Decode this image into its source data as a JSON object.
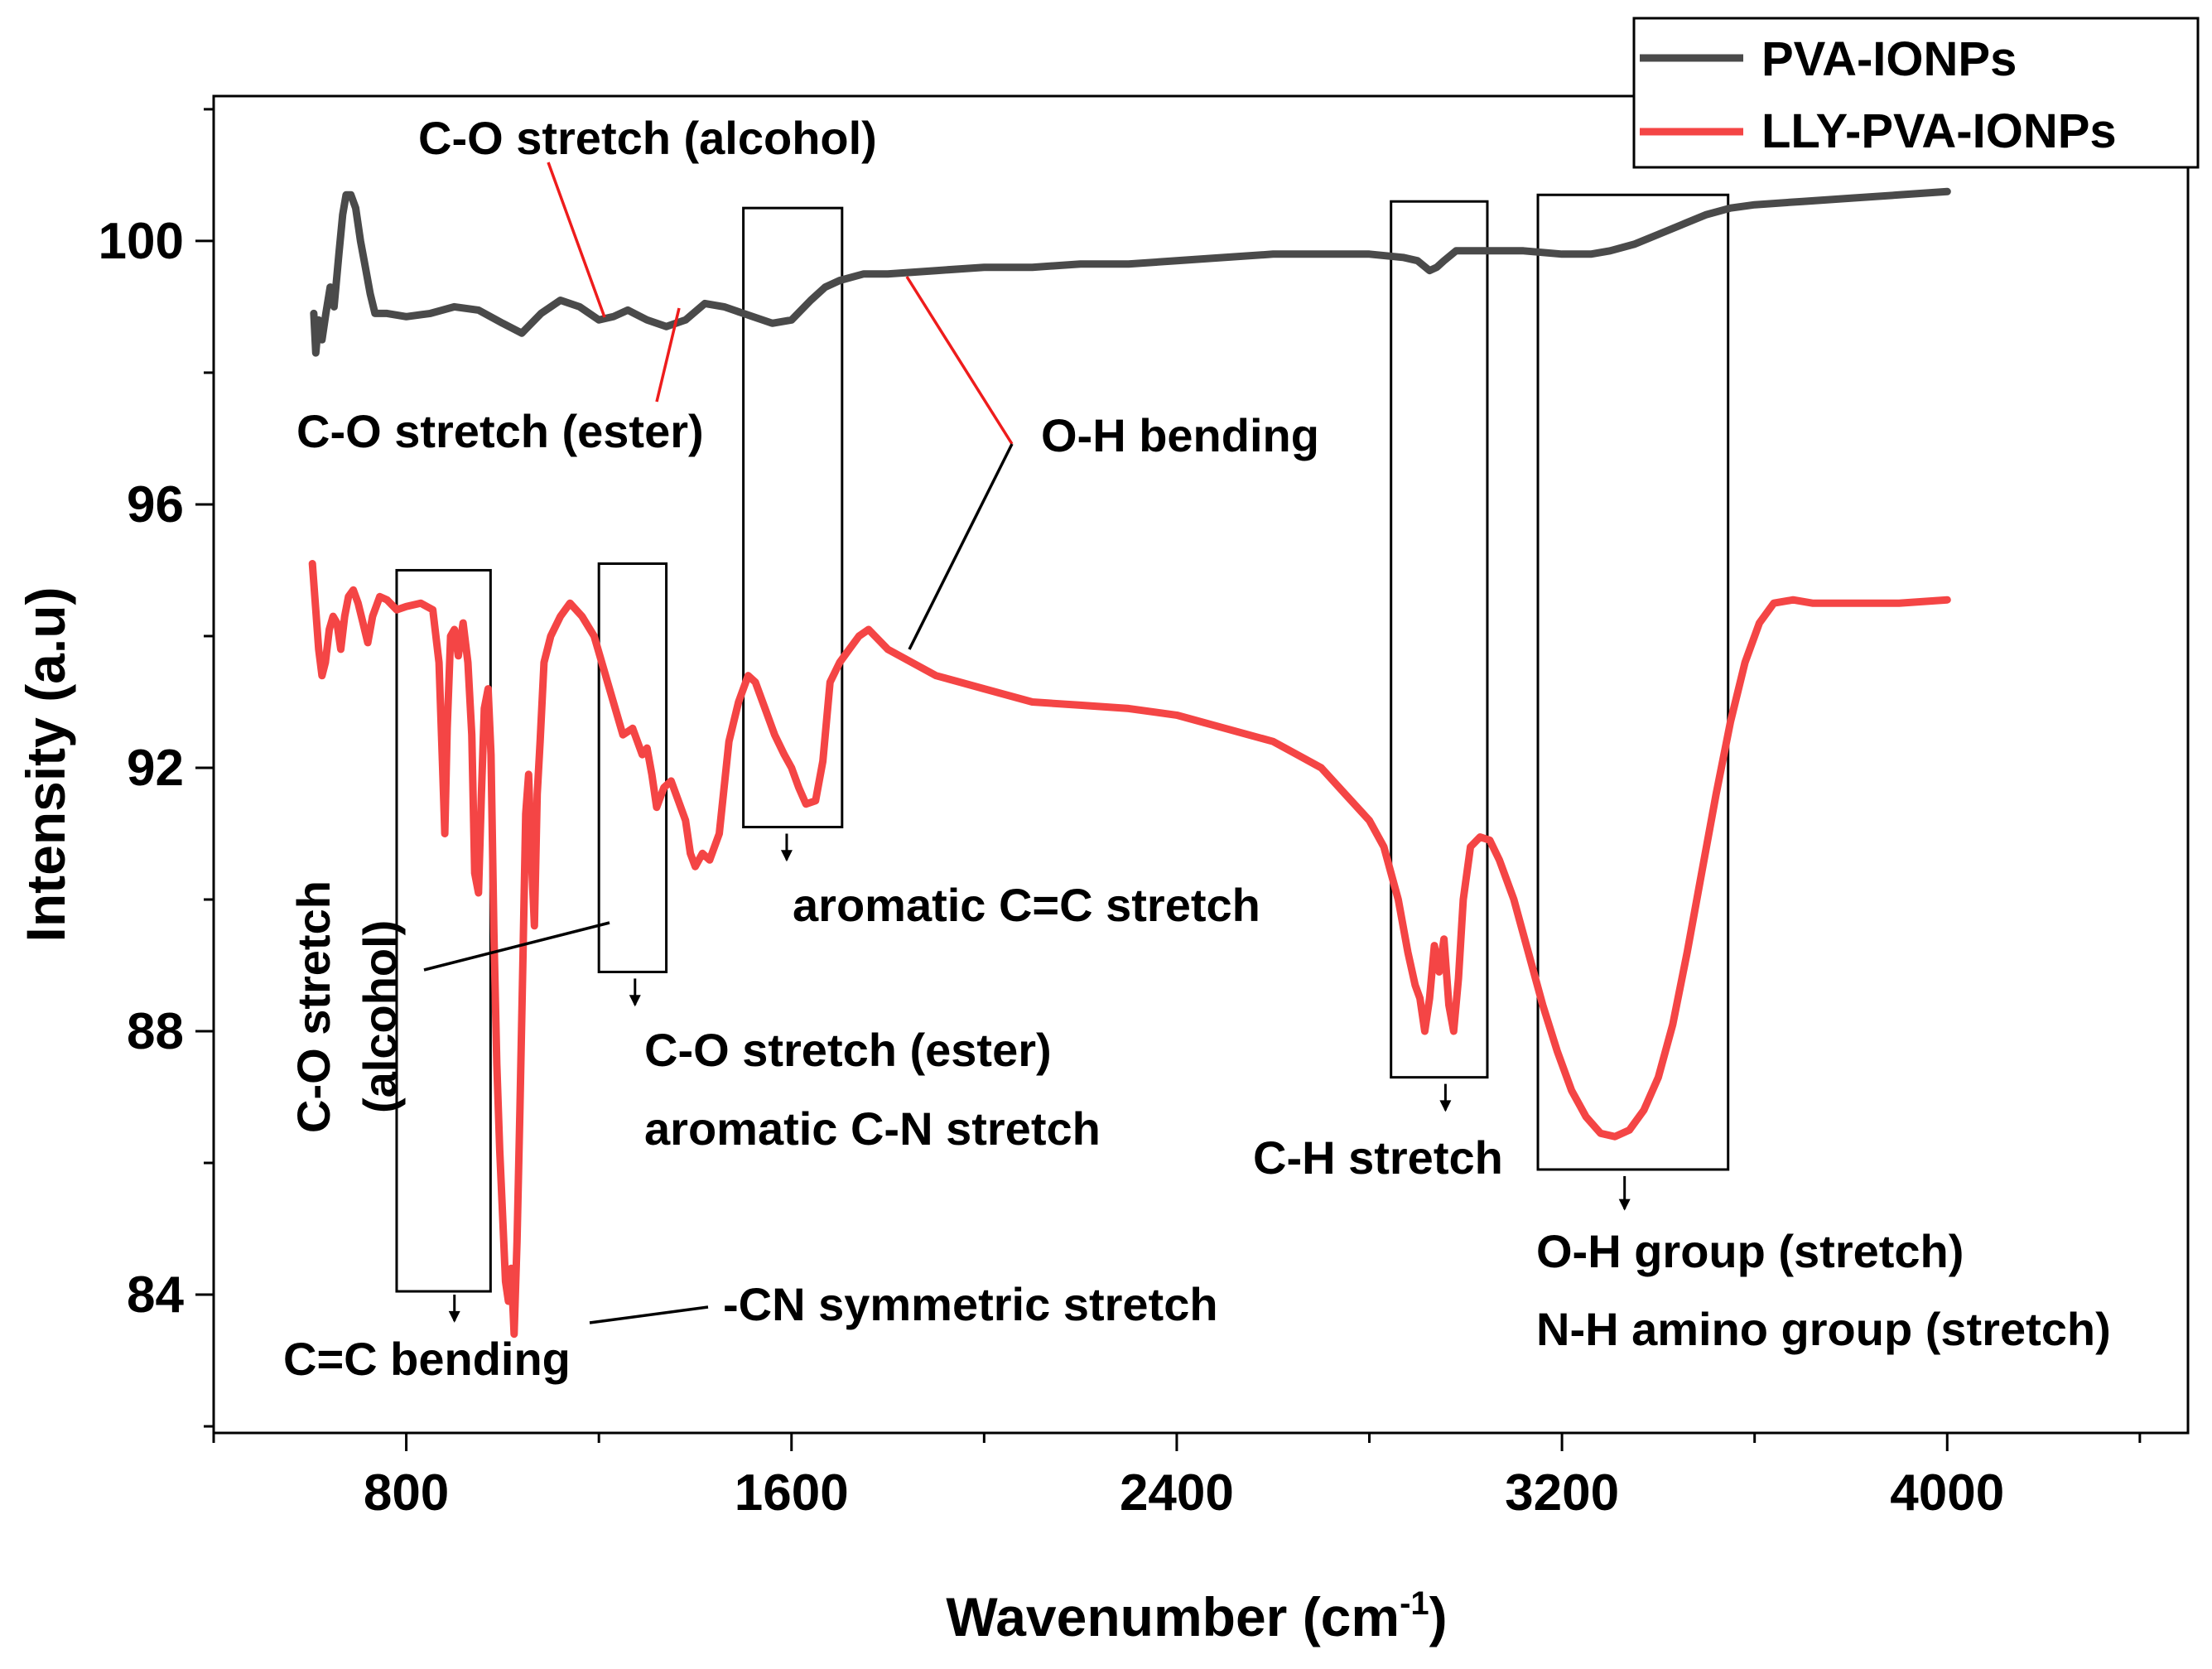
{
  "chart_data": {
    "type": "line",
    "xlabel": "Wavenumber",
    "xlabel_unit": "(cm",
    "xlabel_sup": "-1",
    "xlabel_close": ")",
    "ylabel": "Intensity (a.u)",
    "xlim": [
      400,
      4500
    ],
    "ylim": [
      81.9,
      102.2
    ],
    "xticks": [
      800,
      1600,
      2400,
      3200,
      4000
    ],
    "xtick_labels": [
      "800",
      "1600",
      "2400",
      "3200",
      "4000"
    ],
    "yticks": [
      84,
      88,
      92,
      96,
      100
    ],
    "ytick_labels": [
      "84",
      "88",
      "92",
      "96",
      "100"
    ],
    "legend": {
      "position": "top-right"
    },
    "series": [
      {
        "name": "PVA-IONPs",
        "color": "#4a4a4a",
        "points": [
          [
            608,
            98.9
          ],
          [
            612,
            98.3
          ],
          [
            618,
            98.8
          ],
          [
            625,
            98.5
          ],
          [
            633,
            98.9
          ],
          [
            642,
            99.3
          ],
          [
            650,
            99.0
          ],
          [
            660,
            99.8
          ],
          [
            668,
            100.4
          ],
          [
            675,
            100.7
          ],
          [
            685,
            100.7
          ],
          [
            695,
            100.5
          ],
          [
            705,
            100.0
          ],
          [
            715,
            99.6
          ],
          [
            725,
            99.2
          ],
          [
            735,
            98.9
          ],
          [
            760,
            98.9
          ],
          [
            800,
            98.85
          ],
          [
            850,
            98.9
          ],
          [
            900,
            99.0
          ],
          [
            950,
            98.95
          ],
          [
            1000,
            98.75
          ],
          [
            1040,
            98.6
          ],
          [
            1080,
            98.9
          ],
          [
            1120,
            99.1
          ],
          [
            1160,
            99.0
          ],
          [
            1200,
            98.8
          ],
          [
            1230,
            98.85
          ],
          [
            1260,
            98.95
          ],
          [
            1300,
            98.8
          ],
          [
            1340,
            98.7
          ],
          [
            1380,
            98.8
          ],
          [
            1420,
            99.05
          ],
          [
            1460,
            99.0
          ],
          [
            1500,
            98.9
          ],
          [
            1560,
            98.75
          ],
          [
            1600,
            98.8
          ],
          [
            1640,
            99.1
          ],
          [
            1670,
            99.3
          ],
          [
            1700,
            99.4
          ],
          [
            1750,
            99.5
          ],
          [
            1800,
            99.5
          ],
          [
            1900,
            99.55
          ],
          [
            2000,
            99.6
          ],
          [
            2100,
            99.6
          ],
          [
            2200,
            99.65
          ],
          [
            2300,
            99.65
          ],
          [
            2400,
            99.7
          ],
          [
            2500,
            99.75
          ],
          [
            2600,
            99.8
          ],
          [
            2700,
            99.8
          ],
          [
            2800,
            99.8
          ],
          [
            2870,
            99.75
          ],
          [
            2900,
            99.7
          ],
          [
            2925,
            99.55
          ],
          [
            2940,
            99.6
          ],
          [
            2955,
            99.7
          ],
          [
            2980,
            99.85
          ],
          [
            3050,
            99.85
          ],
          [
            3120,
            99.85
          ],
          [
            3200,
            99.8
          ],
          [
            3260,
            99.8
          ],
          [
            3300,
            99.85
          ],
          [
            3350,
            99.95
          ],
          [
            3400,
            100.1
          ],
          [
            3450,
            100.25
          ],
          [
            3500,
            100.4
          ],
          [
            3550,
            100.5
          ],
          [
            3600,
            100.55
          ],
          [
            3700,
            100.6
          ],
          [
            3800,
            100.65
          ],
          [
            3900,
            100.7
          ],
          [
            4000,
            100.75
          ]
        ]
      },
      {
        "name": "LLY-PVA-IONPs",
        "color": "#f44545",
        "points": [
          [
            605,
            95.1
          ],
          [
            612,
            94.4
          ],
          [
            618,
            93.8
          ],
          [
            625,
            93.4
          ],
          [
            632,
            93.6
          ],
          [
            640,
            94.1
          ],
          [
            648,
            94.3
          ],
          [
            656,
            94.2
          ],
          [
            664,
            93.8
          ],
          [
            672,
            94.3
          ],
          [
            680,
            94.6
          ],
          [
            690,
            94.7
          ],
          [
            700,
            94.5
          ],
          [
            710,
            94.2
          ],
          [
            720,
            93.9
          ],
          [
            730,
            94.3
          ],
          [
            745,
            94.6
          ],
          [
            760,
            94.55
          ],
          [
            780,
            94.4
          ],
          [
            800,
            94.45
          ],
          [
            830,
            94.5
          ],
          [
            855,
            94.4
          ],
          [
            868,
            93.6
          ],
          [
            875,
            92.1
          ],
          [
            880,
            91.0
          ],
          [
            885,
            92.6
          ],
          [
            892,
            94.0
          ],
          [
            900,
            94.1
          ],
          [
            908,
            93.7
          ],
          [
            918,
            94.2
          ],
          [
            928,
            93.6
          ],
          [
            936,
            92.5
          ],
          [
            942,
            90.4
          ],
          [
            950,
            90.1
          ],
          [
            956,
            91.6
          ],
          [
            962,
            92.9
          ],
          [
            970,
            93.2
          ],
          [
            976,
            92.2
          ],
          [
            982,
            89.5
          ],
          [
            988,
            87.5
          ],
          [
            994,
            86.2
          ],
          [
            1000,
            85.2
          ],
          [
            1006,
            84.2
          ],
          [
            1012,
            83.9
          ],
          [
            1018,
            84.4
          ],
          [
            1024,
            83.4
          ],
          [
            1030,
            84.8
          ],
          [
            1036,
            86.8
          ],
          [
            1042,
            89.0
          ],
          [
            1048,
            91.3
          ],
          [
            1054,
            91.9
          ],
          [
            1060,
            90.6
          ],
          [
            1066,
            89.6
          ],
          [
            1072,
            91.6
          ],
          [
            1078,
            92.4
          ],
          [
            1086,
            93.6
          ],
          [
            1100,
            94.0
          ],
          [
            1120,
            94.3
          ],
          [
            1140,
            94.5
          ],
          [
            1165,
            94.3
          ],
          [
            1190,
            94.0
          ],
          [
            1210,
            93.5
          ],
          [
            1230,
            93.0
          ],
          [
            1250,
            92.5
          ],
          [
            1270,
            92.6
          ],
          [
            1290,
            92.2
          ],
          [
            1300,
            92.3
          ],
          [
            1310,
            91.9
          ],
          [
            1320,
            91.4
          ],
          [
            1335,
            91.7
          ],
          [
            1350,
            91.8
          ],
          [
            1365,
            91.5
          ],
          [
            1380,
            91.2
          ],
          [
            1390,
            90.7
          ],
          [
            1400,
            90.5
          ],
          [
            1415,
            90.7
          ],
          [
            1430,
            90.6
          ],
          [
            1450,
            91.0
          ],
          [
            1470,
            92.4
          ],
          [
            1490,
            93.0
          ],
          [
            1510,
            93.4
          ],
          [
            1525,
            93.3
          ],
          [
            1545,
            92.9
          ],
          [
            1565,
            92.5
          ],
          [
            1585,
            92.2
          ],
          [
            1600,
            92.0
          ],
          [
            1615,
            91.7
          ],
          [
            1630,
            91.45
          ],
          [
            1650,
            91.5
          ],
          [
            1665,
            92.1
          ],
          [
            1680,
            93.3
          ],
          [
            1700,
            93.6
          ],
          [
            1720,
            93.8
          ],
          [
            1740,
            94.0
          ],
          [
            1760,
            94.1
          ],
          [
            1800,
            93.8
          ],
          [
            1850,
            93.6
          ],
          [
            1900,
            93.4
          ],
          [
            1950,
            93.3
          ],
          [
            2000,
            93.2
          ],
          [
            2100,
            93.0
          ],
          [
            2200,
            92.95
          ],
          [
            2300,
            92.9
          ],
          [
            2400,
            92.8
          ],
          [
            2500,
            92.6
          ],
          [
            2600,
            92.4
          ],
          [
            2650,
            92.2
          ],
          [
            2700,
            92.0
          ],
          [
            2750,
            91.6
          ],
          [
            2800,
            91.2
          ],
          [
            2830,
            90.8
          ],
          [
            2860,
            90.0
          ],
          [
            2880,
            89.2
          ],
          [
            2895,
            88.7
          ],
          [
            2905,
            88.5
          ],
          [
            2915,
            88.0
          ],
          [
            2925,
            88.5
          ],
          [
            2935,
            89.3
          ],
          [
            2945,
            88.9
          ],
          [
            2955,
            89.4
          ],
          [
            2965,
            88.4
          ],
          [
            2975,
            88.0
          ],
          [
            2985,
            88.8
          ],
          [
            2995,
            90.0
          ],
          [
            3010,
            90.8
          ],
          [
            3030,
            90.95
          ],
          [
            3050,
            90.9
          ],
          [
            3070,
            90.6
          ],
          [
            3100,
            90.0
          ],
          [
            3130,
            89.2
          ],
          [
            3160,
            88.4
          ],
          [
            3190,
            87.7
          ],
          [
            3220,
            87.1
          ],
          [
            3250,
            86.7
          ],
          [
            3280,
            86.45
          ],
          [
            3310,
            86.4
          ],
          [
            3340,
            86.5
          ],
          [
            3370,
            86.8
          ],
          [
            3400,
            87.3
          ],
          [
            3430,
            88.1
          ],
          [
            3460,
            89.2
          ],
          [
            3490,
            90.4
          ],
          [
            3520,
            91.6
          ],
          [
            3550,
            92.7
          ],
          [
            3580,
            93.6
          ],
          [
            3610,
            94.2
          ],
          [
            3640,
            94.5
          ],
          [
            3680,
            94.55
          ],
          [
            3720,
            94.5
          ],
          [
            3800,
            94.5
          ],
          [
            3900,
            94.5
          ],
          [
            4000,
            94.55
          ]
        ]
      }
    ],
    "boxes": [
      {
        "x0": 780,
        "x1": 975,
        "y0": 84.05,
        "y1": 95.0
      },
      {
        "x0": 1200,
        "x1": 1340,
        "y0": 88.9,
        "y1": 95.1
      },
      {
        "x0": 1500,
        "x1": 1705,
        "y0": 91.1,
        "y1": 100.5
      },
      {
        "x0": 2845,
        "x1": 3045,
        "y0": 87.3,
        "y1": 100.6
      },
      {
        "x0": 3150,
        "x1": 3545,
        "y0": 85.9,
        "y1": 100.7
      }
    ],
    "arrows": [
      {
        "x": 900,
        "y0": 84.0,
        "y1": 83.6
      },
      {
        "x": 1275,
        "y0": 88.8,
        "y1": 88.4
      },
      {
        "x": 1590,
        "y0": 91.0,
        "y1": 90.6
      },
      {
        "x": 2958,
        "y0": 87.2,
        "y1": 86.8
      },
      {
        "x": 3330,
        "y0": 85.8,
        "y1": 85.3
      }
    ],
    "annotations": {
      "co_alcohol_top": "C-O stretch (alcohol)",
      "co_ester_top": "C-O stretch (ester)",
      "oh_bending": "O-H bending",
      "co_alcohol_vertical_1": "C-O stretch",
      "co_alcohol_vertical_2": "(alcohol)",
      "aromatic_cc": "aromatic C=C stretch",
      "co_ester_low": "C-O stretch (ester)",
      "aromatic_cn": "aromatic C-N stretch",
      "ch_stretch": "C-H stretch",
      "oh_group": "O-H group (stretch)",
      "nh_amino": "N-H amino group (stretch)",
      "cn_symmetric": "-CN symmetric stretch",
      "cc_bending": "C=C bending"
    },
    "leader_color": "#ee1c1c"
  }
}
